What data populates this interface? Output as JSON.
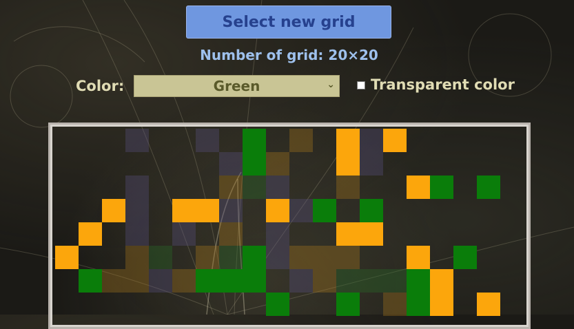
{
  "select_button": {
    "label": "Select new grid"
  },
  "grid_info": {
    "text": "Number of grid: 20×20"
  },
  "color_picker": {
    "label": "Color:",
    "selected": "Green"
  },
  "transparent_option": {
    "label": "Transparent color",
    "checked": false
  },
  "board": {
    "rows_total": 20,
    "cols_total": 20,
    "palette": {
      "G": "#0a7d0a",
      "O": "#fca60c",
      "tg": "rgba(40,110,40,0.35)",
      "to": "rgba(170,120,30,0.35)",
      "tb": "rgba(90,80,130,0.35)"
    },
    "cells": [
      [
        0,
        3,
        "tb"
      ],
      [
        0,
        6,
        "tb"
      ],
      [
        0,
        8,
        "G"
      ],
      [
        0,
        10,
        "to"
      ],
      [
        0,
        12,
        "O"
      ],
      [
        0,
        13,
        "tb"
      ],
      [
        0,
        14,
        "O"
      ],
      [
        1,
        7,
        "tb"
      ],
      [
        1,
        8,
        "G"
      ],
      [
        1,
        9,
        "to"
      ],
      [
        1,
        12,
        "O"
      ],
      [
        1,
        13,
        "tb"
      ],
      [
        2,
        3,
        "tb"
      ],
      [
        2,
        7,
        "to"
      ],
      [
        2,
        8,
        "tg"
      ],
      [
        2,
        9,
        "tb"
      ],
      [
        2,
        12,
        "to"
      ],
      [
        2,
        15,
        "O"
      ],
      [
        2,
        16,
        "G"
      ],
      [
        2,
        18,
        "G"
      ],
      [
        3,
        2,
        "O"
      ],
      [
        3,
        3,
        "tb"
      ],
      [
        3,
        5,
        "O"
      ],
      [
        3,
        6,
        "O"
      ],
      [
        3,
        7,
        "tb"
      ],
      [
        3,
        9,
        "O"
      ],
      [
        3,
        10,
        "tb"
      ],
      [
        3,
        11,
        "G"
      ],
      [
        3,
        13,
        "G"
      ],
      [
        4,
        1,
        "O"
      ],
      [
        4,
        3,
        "tb"
      ],
      [
        4,
        5,
        "tb"
      ],
      [
        4,
        7,
        "to"
      ],
      [
        4,
        9,
        "tb"
      ],
      [
        4,
        12,
        "O"
      ],
      [
        4,
        13,
        "O"
      ],
      [
        5,
        0,
        "O"
      ],
      [
        5,
        3,
        "to"
      ],
      [
        5,
        4,
        "tg"
      ],
      [
        5,
        6,
        "to"
      ],
      [
        5,
        7,
        "tg"
      ],
      [
        5,
        8,
        "G"
      ],
      [
        5,
        9,
        "tb"
      ],
      [
        5,
        10,
        "to"
      ],
      [
        5,
        11,
        "to"
      ],
      [
        5,
        12,
        "to"
      ],
      [
        5,
        15,
        "O"
      ],
      [
        5,
        17,
        "G"
      ],
      [
        6,
        1,
        "G"
      ],
      [
        6,
        2,
        "to"
      ],
      [
        6,
        3,
        "to"
      ],
      [
        6,
        4,
        "tb"
      ],
      [
        6,
        5,
        "to"
      ],
      [
        6,
        6,
        "G"
      ],
      [
        6,
        7,
        "G"
      ],
      [
        6,
        8,
        "G"
      ],
      [
        6,
        10,
        "tb"
      ],
      [
        6,
        11,
        "to"
      ],
      [
        6,
        12,
        "tg"
      ],
      [
        6,
        13,
        "tg"
      ],
      [
        6,
        14,
        "tg"
      ],
      [
        6,
        15,
        "G"
      ],
      [
        6,
        16,
        "O"
      ],
      [
        7,
        9,
        "G"
      ],
      [
        7,
        12,
        "G"
      ],
      [
        7,
        14,
        "to"
      ],
      [
        7,
        15,
        "G"
      ],
      [
        7,
        16,
        "O"
      ],
      [
        7,
        18,
        "O"
      ]
    ]
  }
}
